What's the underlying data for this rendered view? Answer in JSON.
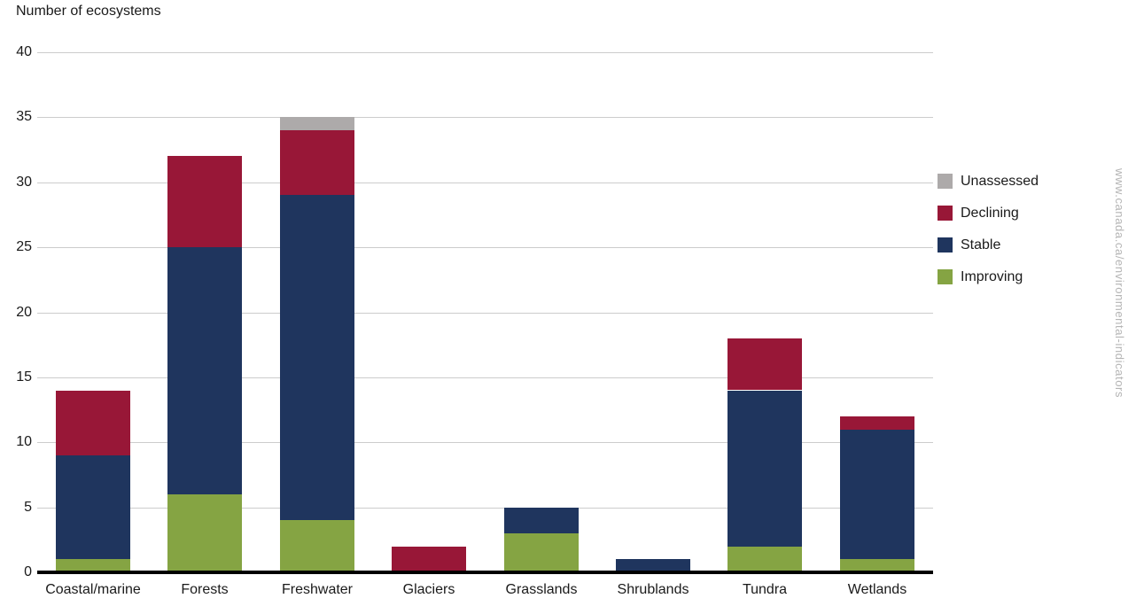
{
  "watermark": "www.canada.ca/environmental-indicators",
  "chart_data": {
    "type": "bar",
    "stacked": true,
    "title": "Number of ecosystems",
    "categories": [
      "Coastal/marine",
      "Forests",
      "Freshwater",
      "Glaciers",
      "Grasslands",
      "Shrublands",
      "Tundra",
      "Wetlands"
    ],
    "series": [
      {
        "name": "Improving",
        "color": "#85a443",
        "values": [
          1,
          6,
          4,
          0,
          3,
          0,
          2,
          1
        ]
      },
      {
        "name": "Stable",
        "color": "#1f355e",
        "values": [
          8,
          19,
          25,
          0,
          2,
          1,
          12,
          10
        ]
      },
      {
        "name": "Declining",
        "color": "#981737",
        "values": [
          5,
          7,
          5,
          2,
          0,
          0,
          4,
          1
        ]
      },
      {
        "name": "Unassessed",
        "color": "#adaaaa",
        "values": [
          0,
          0,
          1,
          0,
          0,
          0,
          0,
          0
        ]
      }
    ],
    "totals": [
      14,
      32,
      35,
      2,
      5,
      1,
      18,
      12
    ],
    "ylabel": "Number of ecosystems",
    "ylim": [
      0,
      40
    ],
    "ytick_step": 5,
    "yticks": [
      0,
      5,
      10,
      15,
      20,
      25,
      30,
      35,
      40
    ],
    "grid": "horizontal",
    "legend": {
      "position": "right",
      "order": [
        "Unassessed",
        "Declining",
        "Stable",
        "Improving"
      ]
    },
    "colors": {
      "gridline": "#cccccc",
      "axis": "#000000",
      "text": "#1a1a1a",
      "watermark": "#b5b5b5"
    }
  }
}
